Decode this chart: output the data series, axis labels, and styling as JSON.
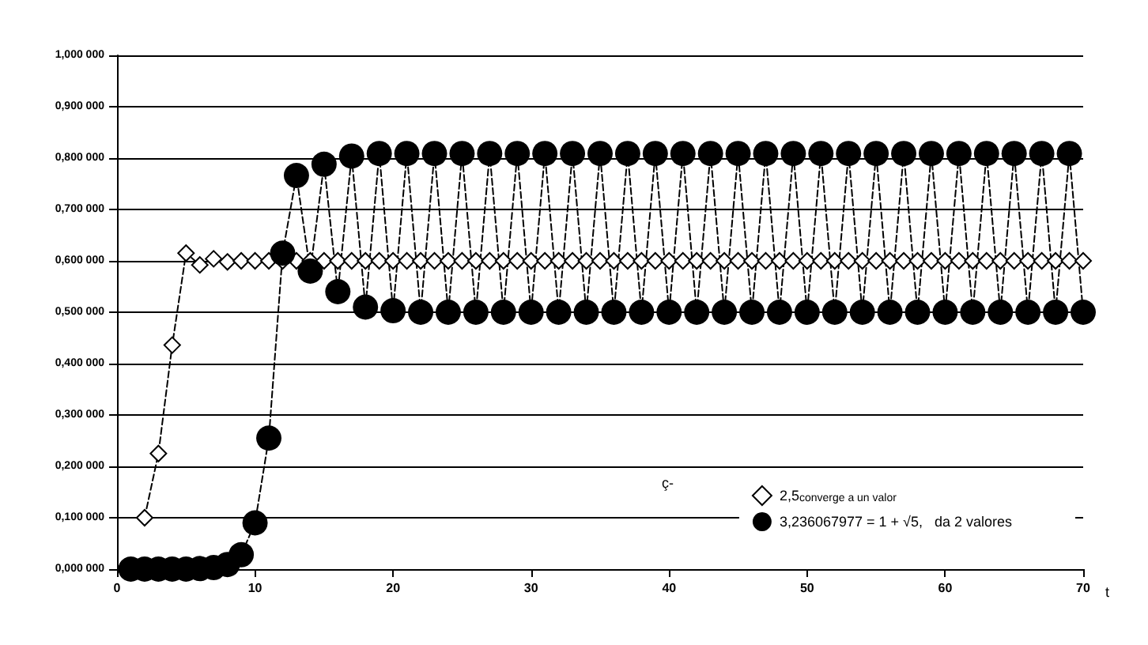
{
  "chart_data": {
    "type": "line",
    "xlabel": "t",
    "legend_title": "ç-",
    "legend": "bottom right",
    "grid": "y",
    "line_style": "dashed",
    "xlim": [
      0,
      70
    ],
    "xticks": [
      0,
      10,
      20,
      30,
      40,
      50,
      60,
      70
    ],
    "ylim": [
      0,
      1
    ],
    "yticks": [
      {
        "value": 0,
        "label": "0,000 000"
      },
      {
        "value": 0.1,
        "label": "0,100 000"
      },
      {
        "value": 0.2,
        "label": "0,200 000"
      },
      {
        "value": 0.3,
        "label": "0,300 000"
      },
      {
        "value": 0.4,
        "label": "0,400 000"
      },
      {
        "value": 0.5,
        "label": "0,500 000"
      },
      {
        "value": 0.6,
        "label": "0,600 000"
      },
      {
        "value": 0.7,
        "label": "0,700 000"
      },
      {
        "value": 0.8,
        "label": "0,800 000"
      },
      {
        "value": 0.9,
        "label": "0,900 000"
      },
      {
        "value": 1,
        "label": "1,000 000"
      }
    ],
    "series": [
      {
        "name": "2,5$_{converge a un valor}$",
        "color": "#000000",
        "marker": "diamond",
        "x": [
          2,
          3,
          4,
          5,
          6,
          7,
          8,
          9,
          10,
          11,
          12,
          13,
          14,
          15,
          16,
          17,
          18,
          19,
          20,
          21,
          22,
          23,
          24,
          25,
          26,
          27,
          28,
          29,
          30,
          31,
          32,
          33,
          34,
          35,
          36,
          37,
          38,
          39,
          40,
          41,
          42,
          43,
          44,
          45,
          46,
          47,
          48,
          49,
          50,
          51,
          52,
          53,
          54,
          55,
          56,
          57,
          58,
          59,
          60,
          61,
          62,
          63,
          64,
          65,
          66,
          67,
          68,
          69,
          70
        ],
        "values": [
          0.1,
          0.225,
          0.436,
          0.615,
          0.592,
          0.604,
          0.598,
          0.6,
          0.6,
          0.6,
          0.6,
          0.6,
          0.6,
          0.6,
          0.6,
          0.6,
          0.6,
          0.6,
          0.6,
          0.6,
          0.6,
          0.6,
          0.6,
          0.6,
          0.6,
          0.6,
          0.6,
          0.6,
          0.6,
          0.6,
          0.6,
          0.6,
          0.6,
          0.6,
          0.6,
          0.6,
          0.6,
          0.6,
          0.6,
          0.6,
          0.6,
          0.6,
          0.6,
          0.6,
          0.6,
          0.6,
          0.6,
          0.6,
          0.6,
          0.6,
          0.6,
          0.6,
          0.6,
          0.6,
          0.6,
          0.6,
          0.6,
          0.6,
          0.6,
          0.6,
          0.6,
          0.6,
          0.6,
          0.6,
          0.6,
          0.6,
          0.6,
          0.6,
          0.6
        ]
      },
      {
        "name": "3,236067977 = 1 + √5,   da 2 valores",
        "color": "#000000",
        "marker": "circle",
        "x": [
          1,
          2,
          3,
          4,
          5,
          6,
          7,
          8,
          9,
          10,
          11,
          12,
          13,
          14,
          15,
          16,
          17,
          18,
          19,
          20,
          21,
          22,
          23,
          24,
          25,
          26,
          27,
          28,
          29,
          30,
          31,
          32,
          33,
          34,
          35,
          36,
          37,
          38,
          39,
          40,
          41,
          42,
          43,
          44,
          45,
          46,
          47,
          48,
          49,
          50,
          51,
          52,
          53,
          54,
          55,
          56,
          57,
          58,
          59,
          60,
          61,
          62,
          63,
          64,
          65,
          66,
          67,
          68,
          69,
          70
        ],
        "values": [
          0,
          0,
          0,
          0,
          0,
          0.001,
          0.003,
          0.009,
          0.028,
          0.09,
          0.255,
          0.615,
          0.766,
          0.58,
          0.788,
          0.54,
          0.804,
          0.51,
          0.809,
          0.503,
          0.809,
          0.5,
          0.809,
          0.5,
          0.809,
          0.5,
          0.809,
          0.5,
          0.809,
          0.5,
          0.809,
          0.5,
          0.809,
          0.5,
          0.809,
          0.5,
          0.809,
          0.5,
          0.809,
          0.5,
          0.809,
          0.5,
          0.809,
          0.5,
          0.809,
          0.5,
          0.809,
          0.5,
          0.809,
          0.5,
          0.809,
          0.5,
          0.809,
          0.5,
          0.809,
          0.5,
          0.809,
          0.5,
          0.809,
          0.5,
          0.809,
          0.5,
          0.809,
          0.5,
          0.809,
          0.5,
          0.809,
          0.5,
          0.809,
          0.5
        ]
      }
    ]
  }
}
